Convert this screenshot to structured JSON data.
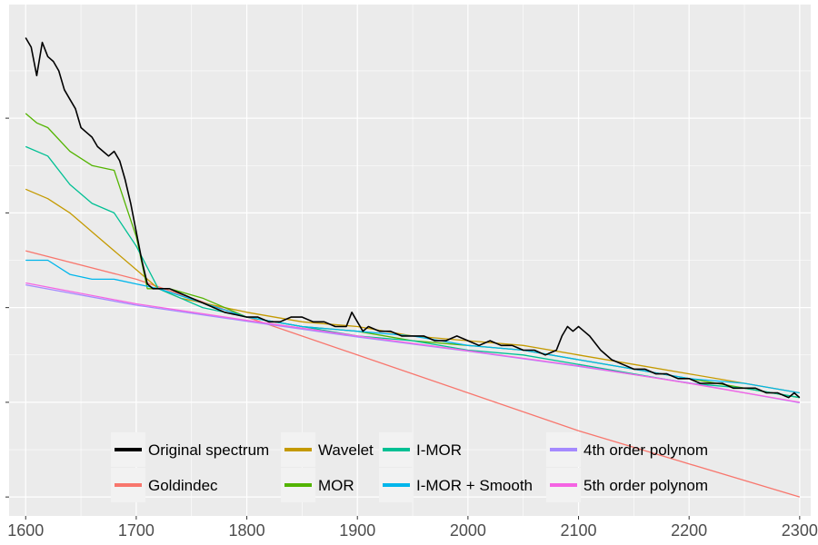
{
  "chart_data": {
    "type": "line",
    "title": "",
    "xlabel": "",
    "ylabel": "",
    "xlim": [
      1585,
      2310
    ],
    "ylim": [
      -0.04,
      1.04
    ],
    "x_ticks": [
      1600,
      1700,
      1800,
      1900,
      2000,
      2100,
      2200,
      2300
    ],
    "y_ticks": [
      0.0,
      0.2,
      0.4,
      0.6,
      0.8
    ],
    "y_tick_labels_shown": false,
    "grid": true,
    "legend_position": "bottom-inside",
    "series": [
      {
        "name": "Original spectrum",
        "color": "#000000",
        "x": [
          1600,
          1605,
          1610,
          1615,
          1620,
          1625,
          1630,
          1635,
          1640,
          1645,
          1650,
          1655,
          1660,
          1665,
          1670,
          1675,
          1680,
          1685,
          1690,
          1695,
          1700,
          1705,
          1710,
          1715,
          1720,
          1730,
          1740,
          1750,
          1760,
          1770,
          1780,
          1790,
          1800,
          1810,
          1820,
          1830,
          1840,
          1850,
          1860,
          1870,
          1880,
          1890,
          1895,
          1900,
          1905,
          1910,
          1920,
          1930,
          1940,
          1950,
          1960,
          1970,
          1980,
          1990,
          2000,
          2010,
          2020,
          2030,
          2040,
          2050,
          2060,
          2070,
          2080,
          2085,
          2090,
          2095,
          2100,
          2105,
          2110,
          2120,
          2130,
          2140,
          2150,
          2160,
          2170,
          2180,
          2190,
          2200,
          2210,
          2220,
          2230,
          2240,
          2250,
          2260,
          2270,
          2280,
          2290,
          2295,
          2300
        ],
        "y": [
          0.97,
          0.95,
          0.89,
          0.96,
          0.93,
          0.92,
          0.9,
          0.86,
          0.84,
          0.82,
          0.78,
          0.77,
          0.76,
          0.74,
          0.73,
          0.72,
          0.73,
          0.71,
          0.67,
          0.62,
          0.56,
          0.5,
          0.45,
          0.44,
          0.44,
          0.44,
          0.43,
          0.42,
          0.41,
          0.4,
          0.39,
          0.385,
          0.38,
          0.38,
          0.37,
          0.37,
          0.38,
          0.38,
          0.37,
          0.37,
          0.36,
          0.36,
          0.39,
          0.37,
          0.35,
          0.36,
          0.35,
          0.35,
          0.34,
          0.34,
          0.34,
          0.33,
          0.33,
          0.34,
          0.33,
          0.32,
          0.33,
          0.32,
          0.32,
          0.31,
          0.31,
          0.3,
          0.31,
          0.34,
          0.36,
          0.35,
          0.36,
          0.35,
          0.34,
          0.31,
          0.29,
          0.28,
          0.27,
          0.27,
          0.26,
          0.26,
          0.25,
          0.25,
          0.24,
          0.24,
          0.24,
          0.23,
          0.23,
          0.23,
          0.22,
          0.22,
          0.21,
          0.22,
          0.21
        ]
      },
      {
        "name": "Goldindec",
        "color": "#F8766D",
        "x": [
          1600,
          1700,
          1800,
          1900,
          2000,
          2100,
          2200,
          2300
        ],
        "y": [
          0.52,
          0.46,
          0.38,
          0.3,
          0.22,
          0.14,
          0.07,
          0.0
        ]
      },
      {
        "name": "Wavelet",
        "color": "#C49A00",
        "x": [
          1600,
          1620,
          1640,
          1660,
          1680,
          1700,
          1720,
          1740,
          1760,
          1800,
          1850,
          1900,
          1950,
          2000,
          2050,
          2100,
          2150,
          2200,
          2250,
          2300
        ],
        "y": [
          0.65,
          0.63,
          0.6,
          0.56,
          0.52,
          0.48,
          0.44,
          0.42,
          0.41,
          0.39,
          0.37,
          0.36,
          0.34,
          0.33,
          0.32,
          0.3,
          0.28,
          0.26,
          0.24,
          0.22
        ]
      },
      {
        "name": "MOR",
        "color": "#53B400",
        "x": [
          1600,
          1610,
          1620,
          1640,
          1660,
          1680,
          1690,
          1700,
          1710,
          1730,
          1760,
          1800,
          1850,
          1900,
          1950,
          2000,
          2050,
          2100,
          2150,
          2200,
          2250,
          2300
        ],
        "y": [
          0.81,
          0.79,
          0.78,
          0.73,
          0.7,
          0.69,
          0.62,
          0.55,
          0.44,
          0.44,
          0.42,
          0.38,
          0.36,
          0.35,
          0.33,
          0.32,
          0.31,
          0.29,
          0.27,
          0.25,
          0.23,
          0.21
        ]
      },
      {
        "name": "I-MOR",
        "color": "#00C094",
        "x": [
          1600,
          1620,
          1640,
          1660,
          1680,
          1700,
          1720,
          1740,
          1760,
          1800,
          1850,
          1900,
          1950,
          2000,
          2050,
          2100,
          2150,
          2200,
          2250,
          2300
        ],
        "y": [
          0.74,
          0.72,
          0.66,
          0.62,
          0.6,
          0.53,
          0.44,
          0.42,
          0.4,
          0.38,
          0.36,
          0.34,
          0.33,
          0.31,
          0.3,
          0.28,
          0.26,
          0.24,
          0.23,
          0.21
        ]
      },
      {
        "name": "I-MOR + Smooth",
        "color": "#00B6EB",
        "x": [
          1600,
          1620,
          1640,
          1660,
          1680,
          1700,
          1720,
          1760,
          1800,
          1850,
          1900,
          1950,
          2000,
          2050,
          2100,
          2150,
          2200,
          2250,
          2300
        ],
        "y": [
          0.5,
          0.5,
          0.47,
          0.46,
          0.46,
          0.45,
          0.44,
          0.41,
          0.38,
          0.36,
          0.35,
          0.34,
          0.32,
          0.31,
          0.29,
          0.27,
          0.25,
          0.24,
          0.22
        ]
      },
      {
        "name": "4th order polynom",
        "color": "#A58AFF",
        "x": [
          1600,
          1700,
          1800,
          1900,
          2000,
          2100,
          2200,
          2300
        ],
        "y": [
          0.448,
          0.405,
          0.371,
          0.338,
          0.308,
          0.276,
          0.241,
          0.199
        ]
      },
      {
        "name": "5th order polynom",
        "color": "#F564E3",
        "x": [
          1600,
          1700,
          1800,
          1900,
          2000,
          2100,
          2200,
          2300
        ],
        "y": [
          0.452,
          0.408,
          0.373,
          0.34,
          0.309,
          0.277,
          0.24,
          0.2
        ]
      }
    ]
  }
}
